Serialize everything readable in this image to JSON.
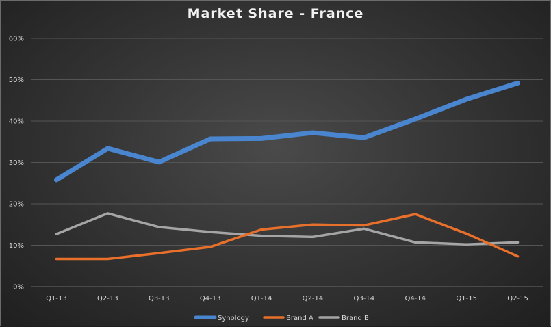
{
  "chart_data": {
    "type": "line",
    "title": "Market Share - France",
    "xlabel": "",
    "ylabel": "",
    "categories": [
      "Q1-13",
      "Q2-13",
      "Q3-13",
      "Q4-13",
      "Q1-14",
      "Q2-14",
      "Q3-14",
      "Q4-14",
      "Q1-15",
      "Q2-15"
    ],
    "y_ticks": [
      "0%",
      "10%",
      "20%",
      "30%",
      "40%",
      "50%",
      "60%"
    ],
    "ylim": [
      0,
      60
    ],
    "grid": true,
    "legend_position": "bottom",
    "series": [
      {
        "name": "Synology",
        "color": "#4a86d0",
        "values": [
          25.8,
          33.4,
          30.1,
          35.7,
          35.8,
          37.2,
          36.0,
          40.5,
          45.3,
          49.2
        ]
      },
      {
        "name": "Brand A",
        "color": "#e8702a",
        "values": [
          6.7,
          6.7,
          8.1,
          9.6,
          13.8,
          15.0,
          14.8,
          17.5,
          12.8,
          7.3
        ]
      },
      {
        "name": "Brand B",
        "color": "#a5a5a5",
        "values": [
          12.7,
          17.7,
          14.4,
          13.2,
          12.3,
          12.0,
          14.0,
          10.7,
          10.2,
          10.7
        ]
      }
    ]
  }
}
